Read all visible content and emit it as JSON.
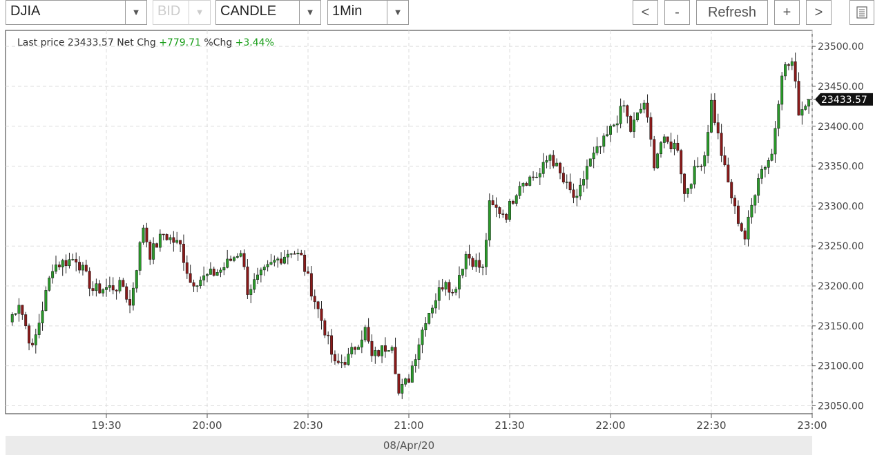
{
  "toolbar": {
    "symbol": "DJIA",
    "side": "BID",
    "chart_type": "CANDLE",
    "interval": "1Min",
    "prev_label": "<",
    "zoom_out_label": "-",
    "refresh_label": "Refresh",
    "zoom_in_label": "+",
    "next_label": ">"
  },
  "info": {
    "last_price_label": "Last price",
    "last_price": "23433.57",
    "net_chg_label": "Net Chg",
    "net_chg": "+779.71",
    "pct_chg_label": "%Chg",
    "pct_chg": "+3.44%"
  },
  "colors": {
    "up": "#2a9a2a",
    "down": "#8b1a1a",
    "wick": "#222222",
    "grid": "#dcdcdc"
  },
  "chart_data": {
    "type": "candlestick",
    "date": "08/Apr/20",
    "x_range": [
      "19:01",
      "23:00"
    ],
    "ylim": [
      23040,
      23520
    ],
    "x_ticks": [
      "19:30",
      "20:00",
      "20:30",
      "21:00",
      "21:30",
      "22:00",
      "22:30",
      "23:00"
    ],
    "y_ticks": [
      "23050.00",
      "23100.00",
      "23150.00",
      "23200.00",
      "23250.00",
      "23300.00",
      "23350.00",
      "23400.00",
      "23450.00",
      "23500.00"
    ],
    "last_price_marker": "23433.57",
    "grid": true,
    "approx_close_series": [
      {
        "t": "19:01",
        "v": 23155
      },
      {
        "t": "19:04",
        "v": 23180
      },
      {
        "t": "19:08",
        "v": 23120
      },
      {
        "t": "19:14",
        "v": 23225
      },
      {
        "t": "19:21",
        "v": 23235
      },
      {
        "t": "19:26",
        "v": 23195
      },
      {
        "t": "19:35",
        "v": 23200
      },
      {
        "t": "19:37",
        "v": 23175
      },
      {
        "t": "19:41",
        "v": 23275
      },
      {
        "t": "19:43",
        "v": 23240
      },
      {
        "t": "19:47",
        "v": 23265
      },
      {
        "t": "19:52",
        "v": 23250
      },
      {
        "t": "19:55",
        "v": 23205
      },
      {
        "t": "19:59",
        "v": 23210
      },
      {
        "t": "20:04",
        "v": 23220
      },
      {
        "t": "20:10",
        "v": 23245
      },
      {
        "t": "20:12",
        "v": 23195
      },
      {
        "t": "20:20",
        "v": 23230
      },
      {
        "t": "20:25",
        "v": 23245
      },
      {
        "t": "20:28",
        "v": 23235
      },
      {
        "t": "20:31",
        "v": 23195
      },
      {
        "t": "20:35",
        "v": 23145
      },
      {
        "t": "20:38",
        "v": 23100
      },
      {
        "t": "20:42",
        "v": 23110
      },
      {
        "t": "20:47",
        "v": 23145
      },
      {
        "t": "20:49",
        "v": 23110
      },
      {
        "t": "20:55",
        "v": 23130
      },
      {
        "t": "20:57",
        "v": 23065
      },
      {
        "t": "21:00",
        "v": 23085
      },
      {
        "t": "21:03",
        "v": 23130
      },
      {
        "t": "21:05",
        "v": 23160
      },
      {
        "t": "21:11",
        "v": 23210
      },
      {
        "t": "21:13",
        "v": 23190
      },
      {
        "t": "21:17",
        "v": 23240
      },
      {
        "t": "21:22",
        "v": 23220
      },
      {
        "t": "21:24",
        "v": 23300
      },
      {
        "t": "21:29",
        "v": 23290
      },
      {
        "t": "21:33",
        "v": 23330
      },
      {
        "t": "21:39",
        "v": 23340
      },
      {
        "t": "21:42",
        "v": 23365
      },
      {
        "t": "21:46",
        "v": 23330
      },
      {
        "t": "21:50",
        "v": 23305
      },
      {
        "t": "21:53",
        "v": 23350
      },
      {
        "t": "21:58",
        "v": 23380
      },
      {
        "t": "22:04",
        "v": 23425
      },
      {
        "t": "22:06",
        "v": 23395
      },
      {
        "t": "22:10",
        "v": 23430
      },
      {
        "t": "22:13",
        "v": 23355
      },
      {
        "t": "22:15",
        "v": 23380
      },
      {
        "t": "22:20",
        "v": 23375
      },
      {
        "t": "22:22",
        "v": 23315
      },
      {
        "t": "22:24",
        "v": 23335
      },
      {
        "t": "22:28",
        "v": 23365
      },
      {
        "t": "22:30",
        "v": 23430
      },
      {
        "t": "22:34",
        "v": 23345
      },
      {
        "t": "22:37",
        "v": 23295
      },
      {
        "t": "22:40",
        "v": 23260
      },
      {
        "t": "22:42",
        "v": 23300
      },
      {
        "t": "22:44",
        "v": 23340
      },
      {
        "t": "22:48",
        "v": 23365
      },
      {
        "t": "22:51",
        "v": 23470
      },
      {
        "t": "22:54",
        "v": 23480
      },
      {
        "t": "22:56",
        "v": 23420
      },
      {
        "t": "22:58",
        "v": 23425
      }
    ]
  }
}
